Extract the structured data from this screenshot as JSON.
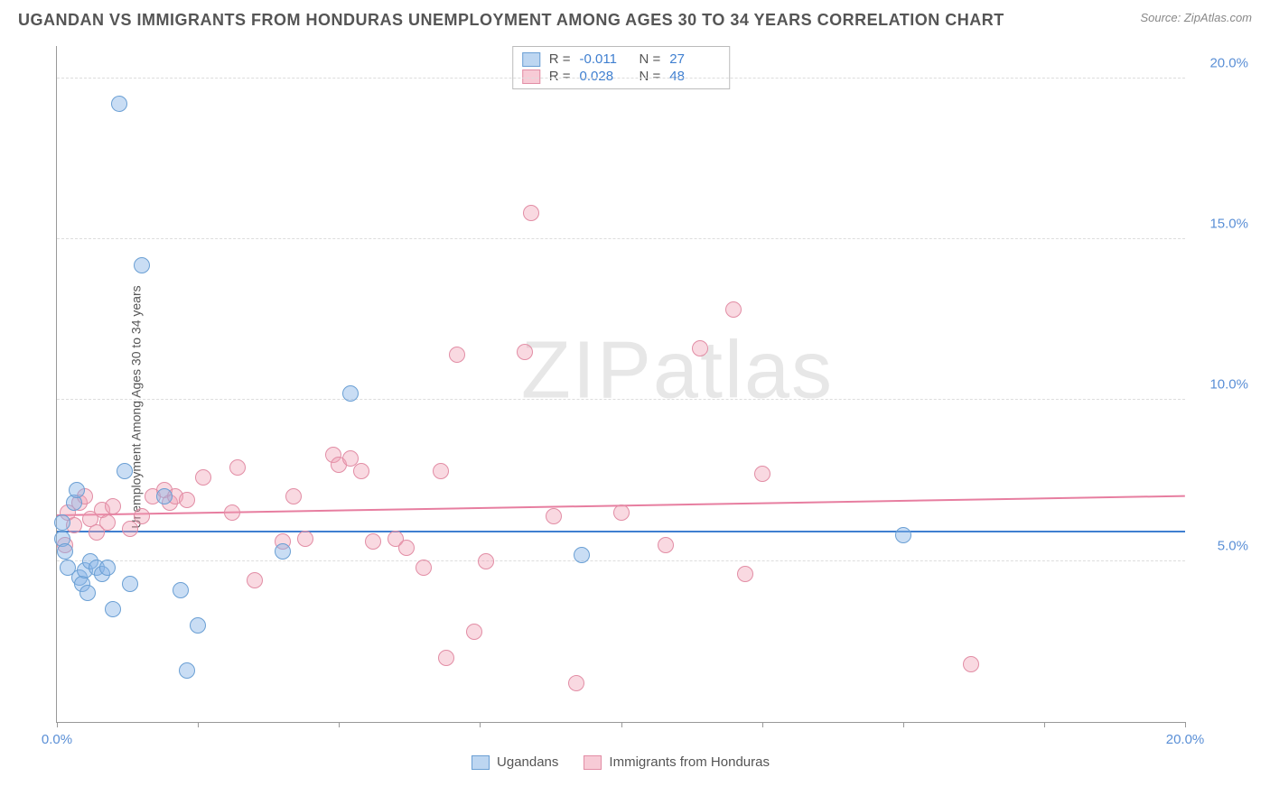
{
  "header": {
    "title": "UGANDAN VS IMMIGRANTS FROM HONDURAS UNEMPLOYMENT AMONG AGES 30 TO 34 YEARS CORRELATION CHART",
    "source": "Source: ZipAtlas.com"
  },
  "chart": {
    "type": "scatter",
    "y_axis_label": "Unemployment Among Ages 30 to 34 years",
    "xlim": [
      0,
      20
    ],
    "ylim": [
      0,
      21
    ],
    "x_ticks": [
      0,
      2.5,
      5,
      7.5,
      10,
      12.5,
      15,
      17.5,
      20
    ],
    "x_tick_labels": {
      "0": "0.0%",
      "20": "20.0%"
    },
    "y_ticks": [
      5,
      10,
      15,
      20
    ],
    "y_tick_labels": {
      "5": "5.0%",
      "10": "10.0%",
      "15": "15.0%",
      "20": "20.0%"
    },
    "grid_color": "#dddddd",
    "background_color": "#ffffff",
    "point_radius": 9,
    "series_a": {
      "name": "Ugandans",
      "fill": "rgba(135,180,230,0.45)",
      "stroke": "#6a9fd4",
      "R": "-0.011",
      "N": "27",
      "trend": {
        "y_start": 5.9,
        "y_end": 5.9,
        "color": "#3f7fd0"
      },
      "points": [
        [
          0.1,
          5.7
        ],
        [
          0.1,
          6.2
        ],
        [
          0.15,
          5.3
        ],
        [
          0.2,
          4.8
        ],
        [
          0.3,
          6.8
        ],
        [
          0.35,
          7.2
        ],
        [
          0.4,
          4.5
        ],
        [
          0.45,
          4.3
        ],
        [
          0.5,
          4.7
        ],
        [
          0.55,
          4.0
        ],
        [
          0.6,
          5.0
        ],
        [
          0.7,
          4.8
        ],
        [
          0.8,
          4.6
        ],
        [
          0.9,
          4.8
        ],
        [
          1.0,
          3.5
        ],
        [
          1.1,
          19.2
        ],
        [
          1.2,
          7.8
        ],
        [
          1.3,
          4.3
        ],
        [
          1.5,
          14.2
        ],
        [
          1.9,
          7.0
        ],
        [
          2.2,
          4.1
        ],
        [
          2.3,
          1.6
        ],
        [
          2.5,
          3.0
        ],
        [
          4.0,
          5.3
        ],
        [
          5.2,
          10.2
        ],
        [
          9.3,
          5.2
        ],
        [
          15.0,
          5.8
        ]
      ]
    },
    "series_b": {
      "name": "Immigrants from Honduras",
      "fill": "rgba(240,160,180,0.40)",
      "stroke": "#e28da5",
      "R": "0.028",
      "N": "48",
      "trend": {
        "y_start": 6.4,
        "y_end": 7.0,
        "color": "#e77ea0"
      },
      "points": [
        [
          0.2,
          6.5
        ],
        [
          0.3,
          6.1
        ],
        [
          0.4,
          6.8
        ],
        [
          0.5,
          7.0
        ],
        [
          0.6,
          6.3
        ],
        [
          0.7,
          5.9
        ],
        [
          0.8,
          6.6
        ],
        [
          0.9,
          6.2
        ],
        [
          1.0,
          6.7
        ],
        [
          1.3,
          6.0
        ],
        [
          1.5,
          6.4
        ],
        [
          1.7,
          7.0
        ],
        [
          1.9,
          7.2
        ],
        [
          2.0,
          6.8
        ],
        [
          2.1,
          7.0
        ],
        [
          2.3,
          6.9
        ],
        [
          2.6,
          7.6
        ],
        [
          3.1,
          6.5
        ],
        [
          3.2,
          7.9
        ],
        [
          3.5,
          4.4
        ],
        [
          4.0,
          5.6
        ],
        [
          4.2,
          7.0
        ],
        [
          4.4,
          5.7
        ],
        [
          4.9,
          8.3
        ],
        [
          5.0,
          8.0
        ],
        [
          5.2,
          8.2
        ],
        [
          5.4,
          7.8
        ],
        [
          5.6,
          5.6
        ],
        [
          6.0,
          5.7
        ],
        [
          6.2,
          5.4
        ],
        [
          6.5,
          4.8
        ],
        [
          6.8,
          7.8
        ],
        [
          6.9,
          2.0
        ],
        [
          7.1,
          11.4
        ],
        [
          7.4,
          2.8
        ],
        [
          7.6,
          5.0
        ],
        [
          8.3,
          11.5
        ],
        [
          8.4,
          15.8
        ],
        [
          8.8,
          6.4
        ],
        [
          9.2,
          1.2
        ],
        [
          10.0,
          6.5
        ],
        [
          10.8,
          5.5
        ],
        [
          11.4,
          11.6
        ],
        [
          12.0,
          12.8
        ],
        [
          12.2,
          4.6
        ],
        [
          12.5,
          7.7
        ],
        [
          16.2,
          1.8
        ],
        [
          0.15,
          5.5
        ]
      ]
    },
    "legend": {
      "a": "Ugandans",
      "b": "Immigrants from Honduras"
    },
    "watermark": "ZIPatlas"
  }
}
